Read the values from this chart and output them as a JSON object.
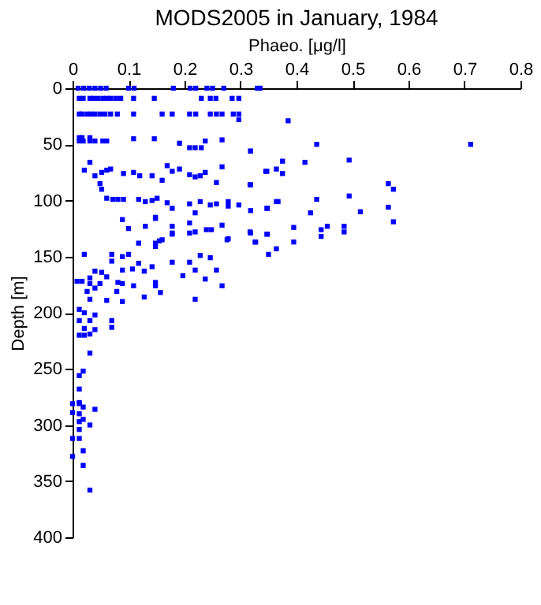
{
  "chart_data": {
    "type": "scatter",
    "title": "MODS2005 in January, 1984",
    "xlabel": "Phaeo. [μg/l]",
    "ylabel": "Depth [m]",
    "xlim": [
      0,
      0.8
    ],
    "xticks": [
      0,
      0.1,
      0.2,
      0.3,
      0.4,
      0.5,
      0.6,
      0.7,
      0.8
    ],
    "ylim": [
      400,
      0
    ],
    "yticks": [
      0,
      50,
      100,
      150,
      200,
      250,
      300,
      350,
      400
    ],
    "grid": false,
    "marker": "square",
    "series": [
      {
        "color": "#0000ff",
        "x": [
          0.01,
          0.02,
          0.03,
          0.04,
          0.05,
          0.06,
          0.1,
          0.11,
          0.18,
          0.21,
          0.22,
          0.24,
          0.25,
          0.27,
          0.33,
          0.335,
          0.012,
          0.019,
          0.031,
          0.037,
          0.045,
          0.054,
          0.061,
          0.068,
          0.077,
          0.086,
          0.109,
          0.146,
          0.23,
          0.246,
          0.256,
          0.285,
          0.297,
          0.012,
          0.017,
          0.026,
          0.033,
          0.04,
          0.049,
          0.058,
          0.068,
          0.08,
          0.109,
          0.16,
          0.178,
          0.209,
          0.22,
          0.246,
          0.257,
          0.267,
          0.287,
          0.297,
          0.297,
          0.385,
          0.012,
          0.017,
          0.031,
          0.012,
          0.019,
          0.031,
          0.04,
          0.054,
          0.061,
          0.109,
          0.146,
          0.191,
          0.209,
          0.219,
          0.23,
          0.237,
          0.267,
          0.318,
          0.436,
          0.711,
          0.318,
          0.031,
          0.021,
          0.052,
          0.061,
          0.068,
          0.04,
          0.091,
          0.109,
          0.12,
          0.142,
          0.16,
          0.169,
          0.178,
          0.191,
          0.209,
          0.219,
          0.228,
          0.237,
          0.257,
          0.267,
          0.318,
          0.345,
          0.364,
          0.375,
          0.415,
          0.347,
          0.375,
          0.494,
          0.317,
          0.564,
          0.573,
          0.049,
          0.052,
          0.061,
          0.072,
          0.081,
          0.091,
          0.118,
          0.13,
          0.142,
          0.151,
          0.148,
          0.169,
          0.178,
          0.209,
          0.219,
          0.228,
          0.246,
          0.257,
          0.278,
          0.278,
          0.318,
          0.348,
          0.364,
          0.297,
          0.347,
          0.367,
          0.436,
          0.494,
          0.425,
          0.514,
          0.564,
          0.317,
          0.347,
          0.395,
          0.444,
          0.455,
          0.485,
          0.485,
          0.444,
          0.326,
          0.395,
          0.573,
          0.089,
          0.1,
          0.13,
          0.148,
          0.178,
          0.178,
          0.209,
          0.209,
          0.219,
          0.239,
          0.248,
          0.267,
          0.278,
          0.318,
          0.327,
          0.348,
          0.118,
          0.148,
          0.16,
          0.021,
          0.008,
          0.017,
          0.031,
          0.04,
          0.031,
          0.04,
          0.049,
          0.052,
          0.07,
          0.07,
          0.089,
          0.1,
          0.089,
          0.061,
          0.081,
          0.089,
          0.079,
          0.089,
          0.061,
          0.07,
          0.07,
          0.026,
          0.031,
          0.012,
          0.021,
          0.04,
          0.031,
          0.04,
          0.012,
          0.021,
          0.012,
          0.021,
          0.031,
          0.031,
          0.109,
          0.107,
          0.118,
          0.128,
          0.128,
          0.142,
          0.148,
          0.148,
          0.157,
          0.148,
          0.178,
          0.197,
          0.209,
          0.219,
          0.219,
          0.228,
          0.237,
          0.246,
          0.257,
          0.267,
          0.276,
          0.35,
          0.364,
          0.155,
          0.178,
          0.019,
          0.012,
          0.012,
          0.012,
          0.0,
          0.012,
          0.019,
          0.04,
          0.0,
          0.012,
          0.012,
          0.019,
          0.031,
          0.012,
          0.0,
          0.012,
          0.019,
          0.0,
          0.019,
          0.031
        ],
        "values": [
          0,
          0,
          0,
          0,
          0,
          0,
          0,
          0,
          0,
          0,
          0,
          0,
          0,
          0,
          0,
          0,
          9,
          9,
          9,
          9,
          9,
          9,
          9,
          9,
          9,
          9,
          9,
          9,
          9,
          9,
          9,
          9,
          9,
          23,
          23,
          23,
          23,
          23,
          23,
          23,
          23,
          23,
          23,
          23,
          23,
          23,
          23,
          23,
          23,
          23,
          23,
          23,
          28,
          29,
          44,
          44,
          44,
          47,
          47,
          47,
          47,
          47,
          47,
          45,
          45,
          49,
          53,
          53,
          53,
          47,
          46,
          56,
          50,
          50,
          56,
          66,
          73,
          75,
          73,
          72,
          78,
          76,
          75,
          78,
          78,
          82,
          69,
          74,
          72,
          77,
          79,
          78,
          75,
          84,
          70,
          86,
          74,
          72,
          65,
          66,
          74,
          76,
          64,
          86,
          85,
          90,
          85,
          90,
          98,
          99,
          99,
          99,
          99,
          101,
          100,
          98,
          115,
          102,
          107,
          103,
          111,
          101,
          104,
          103,
          101,
          105,
          109,
          107,
          101,
          104,
          107,
          101,
          99,
          96,
          111,
          110,
          106,
          128,
          130,
          124,
          126,
          123,
          123,
          128,
          132,
          137,
          137,
          119,
          117,
          125,
          123,
          116,
          123,
          129,
          120,
          129,
          128,
          126,
          126,
          122,
          134,
          129,
          137,
          130,
          138,
          138,
          135,
          148,
          172,
          172,
          169,
          163,
          174,
          178,
          174,
          164,
          148,
          154,
          150,
          148,
          162,
          168,
          173,
          174,
          181,
          190,
          189,
          207,
          213,
          181,
          188,
          197,
          200,
          202,
          207,
          215,
          207,
          214,
          220,
          220,
          219,
          236,
          176,
          161,
          156,
          186,
          163,
          159,
          173,
          176,
          182,
          141,
          155,
          167,
          155,
          162,
          188,
          149,
          170,
          151,
          162,
          176,
          135,
          148,
          143,
          136,
          130,
          252,
          256,
          268,
          281,
          281,
          280,
          284,
          286,
          289,
          290,
          297,
          295,
          300,
          304,
          312,
          312,
          323,
          328,
          336,
          358
        ]
      }
    ]
  }
}
